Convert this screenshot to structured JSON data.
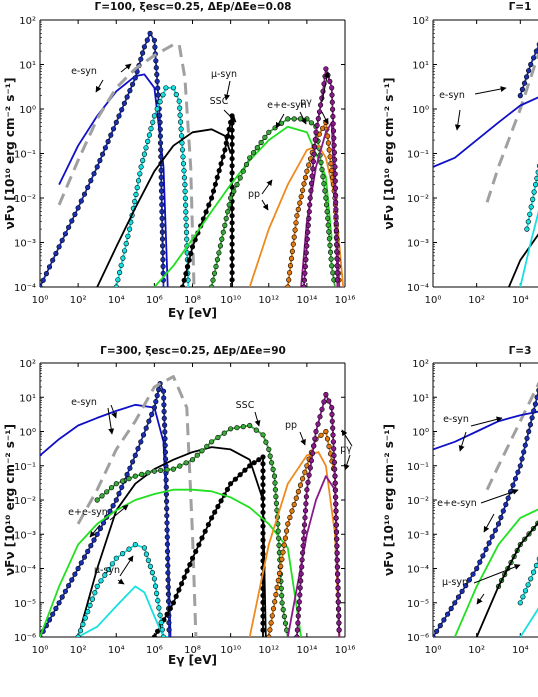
{
  "chart_data": [
    {
      "type": "line",
      "title": "Γ=100, ξesc=0.25, ΔEp/ΔEe=0.08",
      "xlabel": "Eγ [eV]",
      "ylabel": "νFν [10¹⁰ erg cm⁻² s⁻¹]",
      "xscale": "log",
      "yscale": "log",
      "xlim": [
        1,
        1e+16
      ],
      "ylim": [
        0.0001,
        100
      ],
      "x_ticks": [
        "10^0",
        "10^2",
        "10^4",
        "10^6",
        "10^8",
        "10^10",
        "10^12",
        "10^14",
        "10^16"
      ],
      "y_ticks": [
        "10^-4",
        "10^-3",
        "10^-2",
        "10^-1",
        "10^0",
        "10^1",
        "10^2"
      ],
      "series": [
        {
          "color": "#1010c8",
          "markers": false,
          "x": [
            10,
            100,
            1000,
            10000,
            100000,
            300000,
            1000000,
            3000000,
            5000000
          ],
          "y": [
            0.02,
            0.15,
            0.7,
            2.5,
            5.5,
            6,
            3,
            0.05,
            0.0001
          ]
        },
        {
          "color": "#1a2fb0",
          "markers": true,
          "x": [
            1,
            10,
            100,
            1000,
            10000,
            100000,
            300000,
            600000,
            1000000,
            2000000,
            3000000
          ],
          "y": [
            0.0001,
            0.0008,
            0.006,
            0.05,
            0.5,
            5,
            25,
            50,
            35,
            0.5,
            0.0001
          ]
        },
        {
          "color": "#a0a0a0",
          "dashed": true,
          "x": [
            10,
            100,
            1000,
            10000,
            100000,
            1000000,
            10000000,
            20000000,
            40000000,
            80000000,
            120000000
          ],
          "y": [
            0.007,
            0.07,
            0.6,
            3,
            8,
            16,
            28,
            28,
            5,
            0.05,
            0.0001
          ]
        },
        {
          "color": "#18e0e0",
          "markers": true,
          "x": [
            10000,
            50000,
            200000,
            1000000,
            4000000,
            10000000,
            20000000,
            40000000,
            60000000
          ],
          "y": [
            0.0001,
            0.002,
            0.05,
            0.7,
            3,
            3,
            1.5,
            0.02,
            0.0001
          ]
        },
        {
          "color": "#000000",
          "markers": false,
          "x": [
            1000,
            10000,
            100000,
            1000000,
            10000000,
            100000000,
            1000000000,
            5000000000,
            10000000000
          ],
          "y": [
            0.0001,
            0.0008,
            0.006,
            0.04,
            0.15,
            0.3,
            0.35,
            0.25,
            0.1
          ]
        },
        {
          "color": "#000000",
          "markers": true,
          "x": [
            30000000,
            100000000,
            1000000000,
            5000000000,
            10000000000,
            12000000000,
            12000000000
          ],
          "y": [
            0.0001,
            0.0008,
            0.01,
            0.12,
            0.5,
            0.7,
            0.0001
          ]
        },
        {
          "color": "#20e020",
          "markers": false,
          "x": [
            1000000,
            10000000,
            100000000,
            1000000000,
            10000000000,
            100000000000,
            1000000000000,
            10000000000000,
            100000000000000,
            1000000000000000,
            2000000000000000
          ],
          "y": [
            0.0001,
            0.0003,
            0.0012,
            0.005,
            0.02,
            0.07,
            0.2,
            0.4,
            0.3,
            0.03,
            0.0012
          ]
        },
        {
          "color": "#3aa83a",
          "markers": true,
          "x": [
            1000000000,
            10000000000,
            100000000000,
            1000000000000,
            10000000000000,
            100000000000000,
            300000000000000,
            1000000000000000,
            2000000000000000,
            3000000000000000
          ],
          "y": [
            0.0001,
            0.01,
            0.08,
            0.3,
            0.6,
            0.6,
            0.4,
            0.01,
            0.0003,
            0.0001
          ]
        },
        {
          "color": "#f08a1e",
          "markers": false,
          "x": [
            100000000000,
            1000000000000,
            10000000000000,
            100000000000000,
            400000000000000,
            1000000000000000,
            3000000000000000,
            8000000000000000
          ],
          "y": [
            0.0001,
            0.002,
            0.02,
            0.12,
            0.15,
            0.08,
            0.01,
            0.0001
          ]
        },
        {
          "color": "#e07a10",
          "markers": true,
          "x": [
            10000000000000,
            30000000000000,
            100000000000000,
            300000000000000,
            1000000000000000,
            3000000000000000,
            5000000000000000
          ],
          "y": [
            0.0001,
            0.004,
            0.04,
            0.2,
            0.5,
            0.01,
            0.0001
          ]
        },
        {
          "color": "#8a1a8a",
          "markers": false,
          "x": [
            50000000000000,
            100000000000000,
            300000000000000,
            1000000000000000,
            2000000000000000,
            3000000000000000,
            5000000000000000
          ],
          "y": [
            0.0001,
            0.003,
            0.05,
            0.3,
            0.5,
            0.01,
            0.0001
          ]
        },
        {
          "color": "#8a1a8a",
          "markers": true,
          "x": [
            70000000000000,
            150000000000000,
            300000000000000,
            700000000000000,
            1000000000000000,
            2000000000000000,
            3000000000000000,
            4000000000000000
          ],
          "y": [
            0.0001,
            0.01,
            0.3,
            2.5,
            8,
            3,
            0.05,
            0.0001
          ]
        }
      ],
      "annotations": [
        "e-syn",
        "μ-syn",
        "SSC",
        "e+e-syn",
        "pγ",
        "pp"
      ]
    },
    {
      "type": "line",
      "title": "Γ=300, ξesc=0.25, ΔEp/ΔEe=90",
      "xlabel": "Eγ [eV]",
      "ylabel": "νFν [10¹⁰ erg cm⁻² s⁻¹]",
      "xscale": "log",
      "yscale": "log",
      "xlim": [
        1,
        1e+16
      ],
      "ylim": [
        1e-06,
        100
      ],
      "x_ticks": [
        "10^0",
        "10^2",
        "10^4",
        "10^6",
        "10^8",
        "10^10",
        "10^12",
        "10^14",
        "10^16"
      ],
      "y_ticks": [
        "10^-6",
        "10^-5",
        "10^-4",
        "10^-3",
        "10^-2",
        "10^-1",
        "10^0",
        "10^1",
        "10^2"
      ],
      "series": [
        {
          "color": "#1010c8",
          "markers": false,
          "x": [
            1,
            10,
            100,
            1000,
            10000,
            100000,
            1000000,
            3000000,
            5000000,
            7000000
          ],
          "y": [
            0.2,
            0.6,
            1.5,
            2.5,
            4,
            6,
            5,
            0.5,
            0.001,
            1e-06
          ]
        },
        {
          "color": "#1a2fb0",
          "markers": true,
          "x": [
            1,
            10,
            100,
            1000,
            10000,
            100000,
            1000000,
            2000000,
            3000000,
            4000000,
            6000000
          ],
          "y": [
            1e-06,
            1e-05,
            0.0001,
            0.001,
            0.01,
            0.2,
            5,
            25,
            15,
            0.1,
            1e-06
          ]
        },
        {
          "color": "#a0a0a0",
          "dashed": true,
          "x": [
            100,
            1000,
            10000,
            100000,
            1000000,
            10000000,
            50000000,
            100000000,
            150000000
          ],
          "y": [
            0.002,
            0.02,
            0.3,
            2,
            20,
            40,
            5,
            0.001,
            1e-06
          ]
        },
        {
          "color": "#000000",
          "markers": false,
          "x": [
            100,
            1000,
            10000,
            100000,
            1000000,
            10000000,
            100000000,
            1000000000,
            10000000000,
            100000000000,
            500000000000,
            700000000000
          ],
          "y": [
            1e-06,
            0.0001,
            0.005,
            0.03,
            0.08,
            0.15,
            0.25,
            0.35,
            0.3,
            0.15,
            0.01,
            1e-06
          ]
        },
        {
          "color": "#000000",
          "markers": true,
          "x": [
            1000000,
            10000000,
            100000000,
            1000000000,
            10000000000,
            100000000000,
            300000000000,
            500000000000,
            500000000000
          ],
          "y": [
            1e-06,
            1e-05,
            0.0002,
            0.003,
            0.03,
            0.1,
            0.15,
            0.18,
            1e-06
          ]
        },
        {
          "color": "#20e020",
          "markers": false,
          "x": [
            1,
            10,
            100,
            1000,
            10000,
            100000,
            1000000,
            10000000,
            100000000,
            1000000000,
            10000000000,
            100000000000,
            1000000000000,
            10000000000000,
            50000000000000
          ],
          "y": [
            1e-06,
            3e-05,
            0.0005,
            0.002,
            0.005,
            0.01,
            0.015,
            0.02,
            0.02,
            0.018,
            0.012,
            0.006,
            0.002,
            0.0004,
            1e-06
          ]
        },
        {
          "color": "#3aa83a",
          "markers": true,
          "x": [
            1000,
            10000,
            100000,
            1000000,
            10000000,
            100000000,
            1000000000,
            10000000000,
            100000000000,
            500000000000,
            1000000000000,
            2000000000000,
            3000000000000,
            5000000000000,
            10000000000000
          ],
          "y": [
            0.01,
            0.03,
            0.05,
            0.07,
            0.08,
            0.15,
            0.5,
            1.2,
            1.5,
            0.8,
            0.3,
            0.05,
            0.002,
            1e-05,
            1e-06
          ]
        },
        {
          "color": "#18e0e0",
          "markers": false,
          "x": [
            100,
            1000,
            10000,
            100000,
            300000,
            1000000,
            3000000,
            5000000
          ],
          "y": [
            1e-06,
            2e-06,
            8e-06,
            3e-05,
            2e-05,
            4e-06,
            1e-06,
            1e-06
          ]
        },
        {
          "color": "#18e0e0",
          "markers": true,
          "x": [
            100,
            1000,
            10000,
            100000,
            300000,
            1000000,
            3000000,
            5000000
          ],
          "y": [
            1e-06,
            3e-05,
            0.0002,
            0.0005,
            0.0004,
            5e-05,
            1e-06,
            1e-06
          ]
        },
        {
          "color": "#f08a1e",
          "markers": false,
          "x": [
            100000000000,
            1000000000000,
            10000000000000,
            100000000000000,
            400000000000000,
            1000000000000000,
            3000000000000000,
            5000000000000000
          ],
          "y": [
            1e-06,
            0.0005,
            0.03,
            0.2,
            0.25,
            0.1,
            0.001,
            1e-06
          ]
        },
        {
          "color": "#e07a10",
          "markers": true,
          "x": [
            1000000000000,
            10000000000000,
            100000000000000,
            300000000000000,
            1000000000000000,
            3000000000000000,
            5000000000000000
          ],
          "y": [
            1e-06,
            0.002,
            0.1,
            0.6,
            1,
            0.05,
            1e-06
          ]
        },
        {
          "color": "#8a1a8a",
          "markers": false,
          "x": [
            10000000000000,
            100000000000000,
            300000000000000,
            1000000000000000,
            3000000000000000,
            5000000000000000
          ],
          "y": [
            1e-06,
            0.001,
            0.01,
            0.05,
            0.02,
            1e-06
          ]
        },
        {
          "color": "#8a1a8a",
          "markers": true,
          "x": [
            30000000000000,
            100000000000000,
            300000000000000,
            1000000000000000,
            2000000000000000,
            3000000000000000,
            5000000000000000
          ],
          "y": [
            1e-06,
            0.02,
            1,
            12,
            5,
            0.05,
            1e-06
          ]
        }
      ],
      "annotations": [
        "e-syn",
        "SSC",
        "pp",
        "e+e-syn",
        "μ-syn",
        "pγ"
      ]
    },
    {
      "partial": true,
      "type": "line",
      "title": "Γ=1",
      "xlim": [
        1,
        100000.0
      ],
      "ylim": [
        0.0001,
        100
      ],
      "x_ticks": [
        "10^2",
        "10^4"
      ],
      "series": [
        {
          "color": "#a0a0a0",
          "dashed": true,
          "x": [
            300,
            1000,
            10000,
            100000
          ],
          "y": [
            0.008,
            0.05,
            1,
            30
          ]
        },
        {
          "color": "#1010c8",
          "markers": false,
          "x": [
            1,
            10,
            100,
            1000,
            10000,
            100000
          ],
          "y": [
            0.05,
            0.08,
            0.2,
            0.5,
            1.2,
            2
          ]
        },
        {
          "color": "#1a2fb0",
          "markers": true,
          "x": [
            10000,
            30000,
            100000
          ],
          "y": [
            2,
            10,
            40
          ]
        },
        {
          "color": "#000000",
          "markers": false,
          "x": [
            3000,
            10000,
            100000
          ],
          "y": [
            0.0001,
            0.0004,
            0.002
          ]
        },
        {
          "color": "#18e0e0",
          "markers": false,
          "x": [
            10000,
            30000,
            100000
          ],
          "y": [
            0.0001,
            0.001,
            0.01
          ]
        },
        {
          "color": "#18e0e0",
          "markers": true,
          "x": [
            20000,
            50000,
            100000
          ],
          "y": [
            0.002,
            0.02,
            0.1
          ]
        }
      ],
      "annotations": [
        "e-syn"
      ]
    },
    {
      "partial": true,
      "type": "line",
      "title": "Γ=3",
      "xlim": [
        1,
        100000.0
      ],
      "ylim": [
        1e-06,
        100
      ],
      "x_ticks": [
        "10^2",
        "10^4"
      ],
      "series": [
        {
          "color": "#a0a0a0",
          "dashed": true,
          "x": [
            300,
            1000,
            10000,
            100000
          ],
          "y": [
            0.02,
            0.1,
            2,
            40
          ]
        },
        {
          "color": "#1010c8",
          "markers": false,
          "x": [
            1,
            10,
            100,
            1000,
            10000,
            100000
          ],
          "y": [
            0.3,
            0.5,
            1,
            2,
            3,
            4
          ]
        },
        {
          "color": "#1a2fb0",
          "markers": true,
          "x": [
            1,
            10,
            100,
            1000,
            10000,
            100000
          ],
          "y": [
            1e-06,
            1e-05,
            0.0001,
            0.002,
            0.1,
            40
          ]
        },
        {
          "color": "#20e020",
          "markers": false,
          "x": [
            10,
            100,
            1000,
            10000,
            100000
          ],
          "y": [
            1e-06,
            3e-05,
            0.0005,
            0.003,
            0.006
          ]
        },
        {
          "color": "#3aa83a",
          "markers": true,
          "x": [
            1000,
            10000,
            100000
          ],
          "y": [
            3e-05,
            0.0005,
            0.003
          ]
        },
        {
          "color": "#000000",
          "markers": false,
          "x": [
            100,
            1000,
            10000,
            100000
          ],
          "y": [
            1e-06,
            3e-05,
            0.0005,
            0.003
          ]
        },
        {
          "color": "#18e0e0",
          "markers": false,
          "x": [
            10000,
            100000
          ],
          "y": [
            1e-06,
            1e-05
          ]
        },
        {
          "color": "#18e0e0",
          "markers": true,
          "x": [
            10000,
            30000,
            100000
          ],
          "y": [
            1e-05,
            5e-05,
            0.0003
          ]
        }
      ],
      "annotations": [
        "e-syn",
        "e+e-syn",
        "μ-syn"
      ]
    }
  ]
}
